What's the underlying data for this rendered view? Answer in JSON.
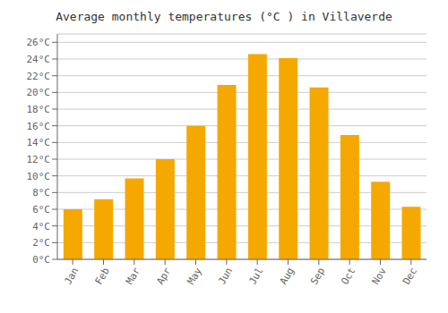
{
  "chart_data": {
    "type": "bar",
    "title": "Average monthly temperatures (°C ) in Villaverde",
    "categories": [
      "Jan",
      "Feb",
      "Mar",
      "Apr",
      "May",
      "Jun",
      "Jul",
      "Aug",
      "Sep",
      "Oct",
      "Nov",
      "Dec"
    ],
    "values": [
      6.0,
      7.2,
      9.7,
      12.0,
      16.0,
      20.9,
      24.6,
      24.1,
      20.6,
      14.9,
      9.3,
      6.3
    ],
    "color": "#F5A800",
    "ylim": [
      0,
      27
    ],
    "yticks": [
      {
        "value": 0,
        "label": "0°C"
      },
      {
        "value": 2,
        "label": "2°C"
      },
      {
        "value": 4,
        "label": "4°C"
      },
      {
        "value": 6,
        "label": "6°C"
      },
      {
        "value": 8,
        "label": "8°C"
      },
      {
        "value": 10,
        "label": "10°C"
      },
      {
        "value": 12,
        "label": "12°C"
      },
      {
        "value": 14,
        "label": "14°C"
      },
      {
        "value": 16,
        "label": "16°C"
      },
      {
        "value": 18,
        "label": "18°C"
      },
      {
        "value": 20,
        "label": "20°C"
      },
      {
        "value": 22,
        "label": "22°C"
      },
      {
        "value": 24,
        "label": "24°C"
      },
      {
        "value": 26,
        "label": "26°C"
      }
    ],
    "grid": true
  }
}
